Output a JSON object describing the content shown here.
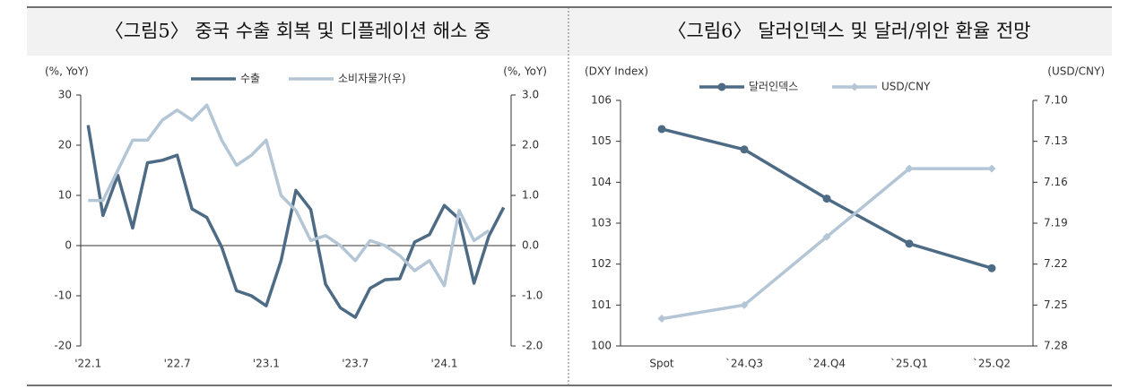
{
  "chart_data": [
    {
      "type": "line",
      "title": "〈그림5〉 중국 수출 회복 및 디플레이션 해소 중",
      "y_label": "(%, YoY)",
      "y2_label": "(%, YoY)",
      "categories": [
        "'22.1",
        null,
        null,
        null,
        null,
        null,
        "'22.7",
        null,
        null,
        null,
        null,
        null,
        "'23.1",
        null,
        null,
        null,
        null,
        null,
        "'23.7",
        null,
        null,
        null,
        null,
        null,
        "'24.1",
        null,
        null,
        null,
        null
      ],
      "series": [
        {
          "name": "수출",
          "color": "#4e6b85",
          "values": [
            24,
            6,
            14,
            3.5,
            16.5,
            17,
            18,
            7.3,
            5.6,
            -0.3,
            -9,
            -10,
            -12,
            -3,
            11,
            7.2,
            -7.7,
            -12.4,
            -14.3,
            -8.5,
            -6.8,
            -6.6,
            0.7,
            2.2,
            8,
            5.3,
            -7.5,
            1.9,
            7.6
          ]
        },
        {
          "name": "소비자물가(우)",
          "color": "#b4c6d6",
          "axis": "y2",
          "values": [
            0.9,
            0.9,
            1.5,
            2.1,
            2.1,
            2.5,
            2.7,
            2.5,
            2.8,
            2.1,
            1.6,
            1.8,
            2.1,
            1.0,
            0.7,
            0.1,
            0.2,
            0,
            -0.3,
            0.1,
            0,
            -0.2,
            -0.5,
            -0.3,
            -0.8,
            0.7,
            0.1,
            0.3,
            null
          ]
        }
      ],
      "ylim": [
        -20,
        30
      ],
      "yticks": [
        -20,
        -10,
        0,
        10,
        20,
        30
      ],
      "y2lim": [
        -2,
        3
      ],
      "y2ticks": [
        {
          "value": -2,
          "label": "-2.0"
        },
        {
          "value": -1,
          "label": "-1.0"
        },
        {
          "value": 0,
          "label": "0.0"
        },
        {
          "value": 1,
          "label": "1.0"
        },
        {
          "value": 2,
          "label": "2.0"
        },
        {
          "value": 3,
          "label": "3.0"
        }
      ]
    },
    {
      "type": "line",
      "title": "〈그림6〉 달러인덱스 및 달러/위안 환율 전망",
      "y_label": "(DXY Index)",
      "y2_label": "(USD/CNY)",
      "categories": [
        "Spot",
        "`24.Q3",
        "`24.Q4",
        "`25.Q1",
        "`25.Q2"
      ],
      "series": [
        {
          "name": "달러인덱스",
          "color": "#4e6b85",
          "marker": "circle",
          "values": [
            105.3,
            104.8,
            103.6,
            102.5,
            101.9
          ]
        },
        {
          "name": "USD/CNY",
          "color": "#b4c6d6",
          "marker": "diamond",
          "axis": "y2",
          "values": [
            7.26,
            7.25,
            7.2,
            7.15,
            7.15
          ]
        }
      ],
      "ylim": [
        100,
        106
      ],
      "yticks": [
        100,
        101,
        102,
        103,
        104,
        105,
        106
      ],
      "y2lim": [
        7.28,
        7.1
      ],
      "y2ticks": [
        {
          "value": 7.1,
          "label": "7.10"
        },
        7.13,
        7.16,
        7.19,
        7.22,
        7.25,
        7.28
      ]
    }
  ]
}
